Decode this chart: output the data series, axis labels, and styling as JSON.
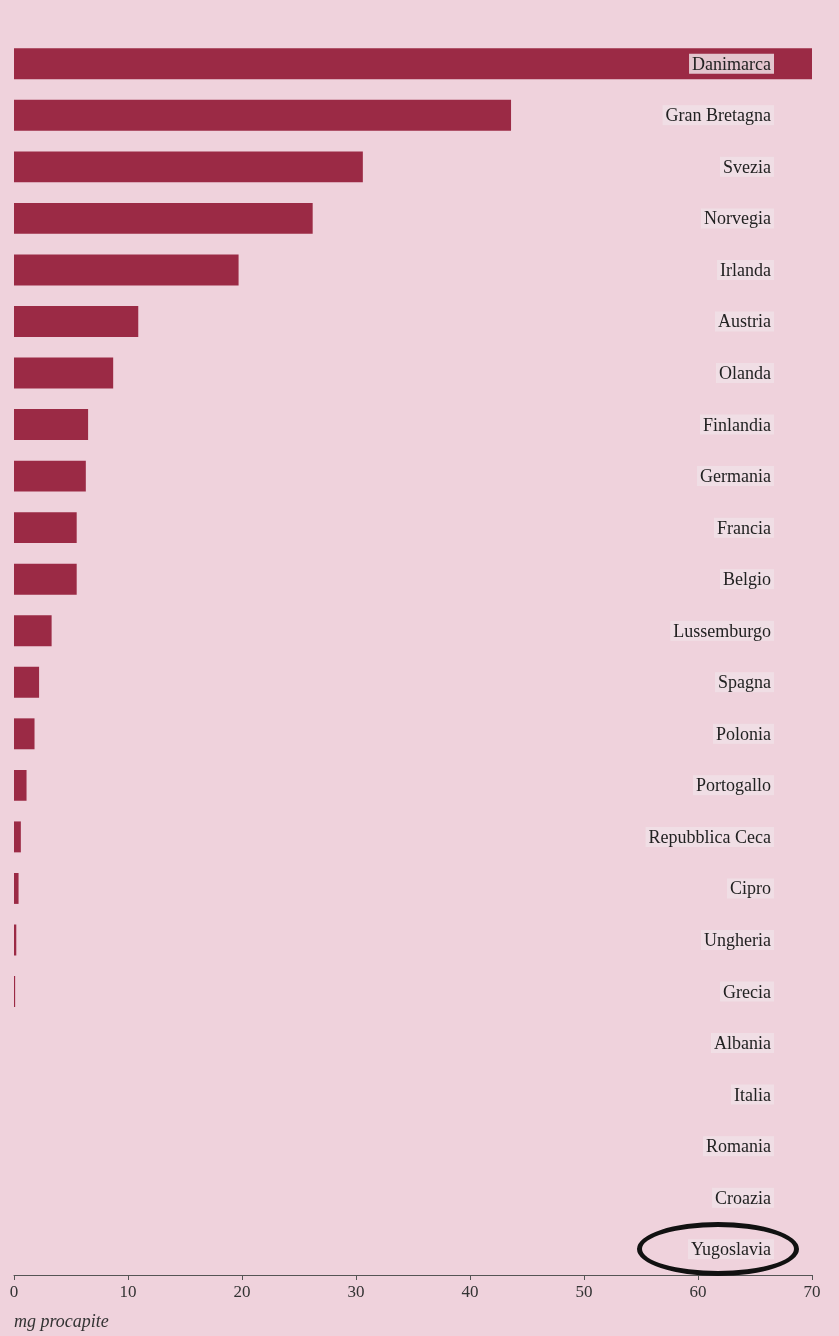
{
  "chart_data": {
    "type": "bar",
    "orientation": "horizontal",
    "xlabel": "mg procapite",
    "categories": [
      "Danimarca",
      "Gran Bretagna",
      "Svezia",
      "Norvegia",
      "Irlanda",
      "Austria",
      "Olanda",
      "Finlandia",
      "Germania",
      "Francia",
      "Belgio",
      "Lussemburgo",
      "Spagna",
      "Polonia",
      "Portogallo",
      "Repubblica Ceca",
      "Cipro",
      "Ungheria",
      "Grecia",
      "Albania",
      "Italia",
      "Romania",
      "Croazia",
      "Yugoslavia"
    ],
    "values": [
      70,
      43.6,
      30.6,
      26.2,
      19.7,
      10.9,
      8.7,
      6.5,
      6.3,
      5.5,
      5.5,
      3.3,
      2.2,
      1.8,
      1.1,
      0.6,
      0.4,
      0.2,
      0.1,
      0,
      0,
      0,
      0,
      0
    ],
    "color": "#9b2a45",
    "xlim": [
      0,
      70
    ],
    "xticks": [
      0,
      10,
      20,
      30,
      40,
      50,
      60,
      70
    ],
    "grid": false,
    "tick_labels": "x"
  }
}
